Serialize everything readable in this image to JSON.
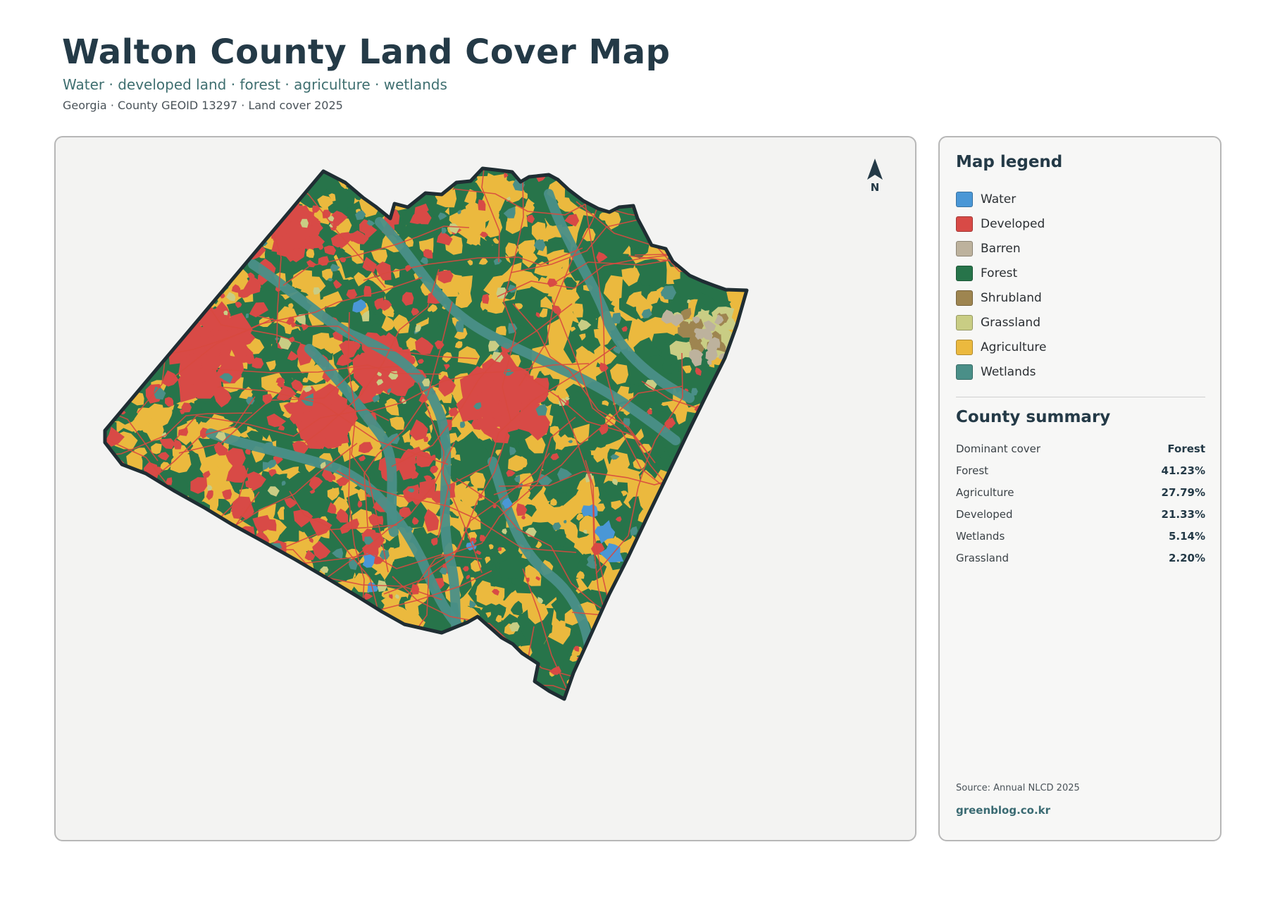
{
  "header": {
    "title": "Walton County Land Cover Map",
    "subtitle": "Water · developed land · forest · agriculture · wetlands",
    "meta": "Georgia · County GEOID 13297 · Land cover 2025"
  },
  "map": {
    "north_label": "N",
    "palette": {
      "water": "#4a97d6",
      "developed": "#d84a46",
      "barren": "#bdb29d",
      "forest": "#27744a",
      "shrubland": "#9e8550",
      "grassland": "#c9cd84",
      "agriculture": "#ebb93e",
      "wetlands": "#4a8f88",
      "border": "#1f2d33",
      "roads": "#d8493f"
    }
  },
  "legend": {
    "title": "Map legend",
    "items": [
      {
        "label": "Water",
        "color": "#4a97d6"
      },
      {
        "label": "Developed",
        "color": "#d84a46"
      },
      {
        "label": "Barren",
        "color": "#bdb29d"
      },
      {
        "label": "Forest",
        "color": "#27744a"
      },
      {
        "label": "Shrubland",
        "color": "#9e8550"
      },
      {
        "label": "Grassland",
        "color": "#c9cd84"
      },
      {
        "label": "Agriculture",
        "color": "#ebb93e"
      },
      {
        "label": "Wetlands",
        "color": "#4a8f88"
      }
    ]
  },
  "summary": {
    "title": "County summary",
    "rows": [
      {
        "key": "Dominant cover",
        "value": "Forest"
      },
      {
        "key": "Forest",
        "value": "41.23%"
      },
      {
        "key": "Agriculture",
        "value": "27.79%"
      },
      {
        "key": "Developed",
        "value": "21.33%"
      },
      {
        "key": "Wetlands",
        "value": "5.14%"
      },
      {
        "key": "Grassland",
        "value": "2.20%"
      }
    ]
  },
  "footer": {
    "source": "Source: Annual NLCD 2025",
    "brand": "greenblog.co.kr"
  }
}
